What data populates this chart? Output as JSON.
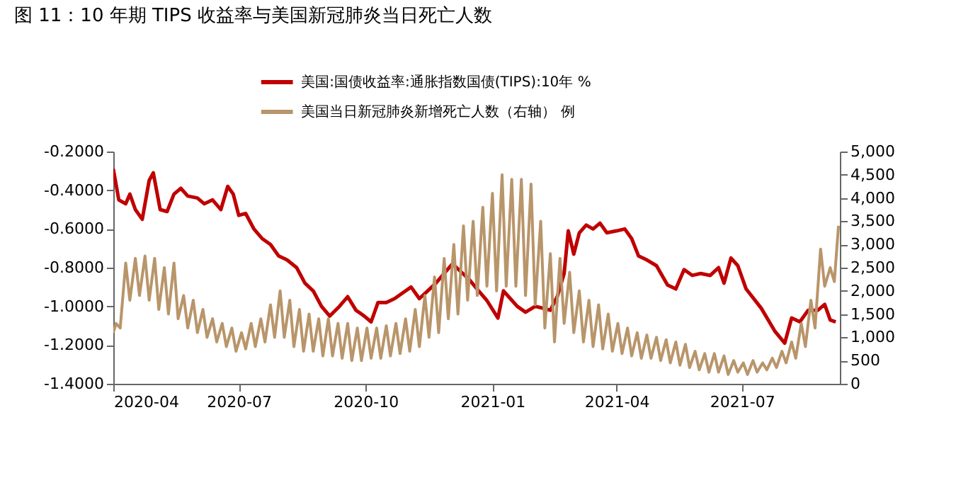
{
  "chart_data": {
    "type": "line",
    "title": "图 11：10 年期 TIPS 收益率与美国新冠肺炎当日死亡人数",
    "xlim": [
      "2020-04-01",
      "2021-09-10"
    ],
    "xticks": [
      "2020-04",
      "2020-07",
      "2020-10",
      "2021-01",
      "2021-04",
      "2021-07"
    ],
    "ylim": [
      -1.4,
      -0.2
    ],
    "yticks": [
      {
        "value": -1.4,
        "label": "-1.4000"
      },
      {
        "value": -1.2,
        "label": "-1.2000"
      },
      {
        "value": -1.0,
        "label": "-1.0000"
      },
      {
        "value": -0.8,
        "label": "-0.8000"
      },
      {
        "value": -0.6,
        "label": "-0.6000"
      },
      {
        "value": -0.4,
        "label": "-0.4000"
      },
      {
        "value": -0.2,
        "label": "-0.2000"
      }
    ],
    "y2lim": [
      0,
      5000
    ],
    "y2ticks": [
      0,
      500,
      {
        "value": 1000,
        "label": "1,000"
      },
      {
        "value": 1500,
        "label": "1,500"
      },
      {
        "value": 2000,
        "label": "2,000"
      },
      {
        "value": 2500,
        "label": "2,500"
      },
      {
        "value": 3000,
        "label": "3,000"
      },
      {
        "value": 3500,
        "label": "3,500"
      },
      {
        "value": 4000,
        "label": "4,000"
      },
      {
        "value": 4500,
        "label": "4,500"
      },
      {
        "value": 5000,
        "label": "5,000"
      }
    ],
    "grid": false,
    "legend": "top",
    "marker": "none",
    "line_style": "solid",
    "series": [
      {
        "name": "美国:国债收益率:通胀指数国债(TIPS):10年 %",
        "color": "#c00000",
        "x": [
          "2020-04-01",
          "2020-04-05",
          "2020-04-10",
          "2020-04-13",
          "2020-04-17",
          "2020-04-22",
          "2020-04-27",
          "2020-04-30",
          "2020-05-05",
          "2020-05-10",
          "2020-05-15",
          "2020-05-20",
          "2020-05-25",
          "2020-06-01",
          "2020-06-06",
          "2020-06-12",
          "2020-06-18",
          "2020-06-23",
          "2020-06-27",
          "2020-07-01",
          "2020-07-06",
          "2020-07-12",
          "2020-07-18",
          "2020-07-24",
          "2020-07-30",
          "2020-08-05",
          "2020-08-12",
          "2020-08-18",
          "2020-08-24",
          "2020-08-30",
          "2020-09-05",
          "2020-09-12",
          "2020-09-18",
          "2020-09-24",
          "2020-09-30",
          "2020-10-05",
          "2020-10-10",
          "2020-10-16",
          "2020-10-22",
          "2020-10-28",
          "2020-11-03",
          "2020-11-09",
          "2020-11-15",
          "2020-11-21",
          "2020-11-27",
          "2020-12-03",
          "2020-12-09",
          "2020-12-15",
          "2020-12-22",
          "2020-12-28",
          "2021-01-05",
          "2021-01-09",
          "2021-01-14",
          "2021-01-19",
          "2021-01-25",
          "2021-02-01",
          "2021-02-07",
          "2021-02-12",
          "2021-02-17",
          "2021-02-22",
          "2021-02-25",
          "2021-03-01",
          "2021-03-05",
          "2021-03-10",
          "2021-03-15",
          "2021-03-20",
          "2021-03-25",
          "2021-04-01",
          "2021-04-07",
          "2021-04-12",
          "2021-04-17",
          "2021-04-23",
          "2021-04-30",
          "2021-05-08",
          "2021-05-14",
          "2021-05-20",
          "2021-05-26",
          "2021-06-01",
          "2021-06-08",
          "2021-06-14",
          "2021-06-18",
          "2021-06-23",
          "2021-06-28",
          "2021-07-04",
          "2021-07-15",
          "2021-07-25",
          "2021-08-01",
          "2021-08-06",
          "2021-08-12",
          "2021-08-18",
          "2021-08-25",
          "2021-08-30",
          "2021-09-03",
          "2021-09-07"
        ],
        "values": [
          -0.29,
          -0.45,
          -0.47,
          -0.42,
          -0.5,
          -0.55,
          -0.35,
          -0.31,
          -0.5,
          -0.51,
          -0.42,
          -0.39,
          -0.43,
          -0.44,
          -0.47,
          -0.45,
          -0.5,
          -0.38,
          -0.42,
          -0.53,
          -0.52,
          -0.6,
          -0.65,
          -0.68,
          -0.74,
          -0.76,
          -0.8,
          -0.88,
          -0.92,
          -1.0,
          -1.05,
          -1.0,
          -0.95,
          -1.02,
          -1.05,
          -1.08,
          -0.98,
          -0.98,
          -0.96,
          -0.93,
          -0.9,
          -0.96,
          -0.92,
          -0.88,
          -0.83,
          -0.78,
          -0.82,
          -0.86,
          -0.92,
          -0.97,
          -1.06,
          -0.92,
          -0.96,
          -1.0,
          -1.03,
          -1.0,
          -1.01,
          -1.02,
          -0.95,
          -0.83,
          -0.61,
          -0.73,
          -0.62,
          -0.58,
          -0.6,
          -0.57,
          -0.62,
          -0.61,
          -0.6,
          -0.65,
          -0.74,
          -0.76,
          -0.79,
          -0.89,
          -0.91,
          -0.81,
          -0.84,
          -0.83,
          -0.84,
          -0.8,
          -0.88,
          -0.75,
          -0.79,
          -0.91,
          -1.01,
          -1.13,
          -1.19,
          -1.06,
          -1.08,
          -1.02,
          -1.02,
          -0.99,
          -1.07,
          -1.08
        ]
      },
      {
        "name": "美国当日新冠肺炎新增死亡人数（右轴） 例",
        "color": "#b8956a",
        "axis": "y2",
        "x": [
          "2020-04-01",
          "2020-04-03",
          "2020-04-06",
          "2020-04-10",
          "2020-04-13",
          "2020-04-17",
          "2020-04-20",
          "2020-04-24",
          "2020-04-27",
          "2020-05-01",
          "2020-05-04",
          "2020-05-08",
          "2020-05-11",
          "2020-05-15",
          "2020-05-18",
          "2020-05-22",
          "2020-05-25",
          "2020-05-29",
          "2020-06-01",
          "2020-06-05",
          "2020-06-08",
          "2020-06-12",
          "2020-06-15",
          "2020-06-19",
          "2020-06-22",
          "2020-06-26",
          "2020-06-29",
          "2020-07-03",
          "2020-07-06",
          "2020-07-10",
          "2020-07-13",
          "2020-07-17",
          "2020-07-20",
          "2020-07-24",
          "2020-07-27",
          "2020-07-31",
          "2020-08-03",
          "2020-08-07",
          "2020-08-10",
          "2020-08-14",
          "2020-08-17",
          "2020-08-21",
          "2020-08-24",
          "2020-08-28",
          "2020-08-31",
          "2020-09-04",
          "2020-09-07",
          "2020-09-11",
          "2020-09-14",
          "2020-09-18",
          "2020-09-21",
          "2020-09-25",
          "2020-09-28",
          "2020-10-02",
          "2020-10-05",
          "2020-10-09",
          "2020-10-12",
          "2020-10-16",
          "2020-10-19",
          "2020-10-23",
          "2020-10-26",
          "2020-10-30",
          "2020-11-02",
          "2020-11-06",
          "2020-11-09",
          "2020-11-13",
          "2020-11-16",
          "2020-11-20",
          "2020-11-23",
          "2020-11-27",
          "2020-11-30",
          "2020-12-04",
          "2020-12-07",
          "2020-12-11",
          "2020-12-14",
          "2020-12-18",
          "2020-12-21",
          "2020-12-25",
          "2020-12-28",
          "2021-01-01",
          "2021-01-04",
          "2021-01-08",
          "2021-01-11",
          "2021-01-15",
          "2021-01-18",
          "2021-01-22",
          "2021-01-25",
          "2021-01-29",
          "2021-02-01",
          "2021-02-05",
          "2021-02-08",
          "2021-02-12",
          "2021-02-15",
          "2021-02-19",
          "2021-02-22",
          "2021-02-26",
          "2021-03-01",
          "2021-03-05",
          "2021-03-08",
          "2021-03-12",
          "2021-03-15",
          "2021-03-19",
          "2021-03-22",
          "2021-03-26",
          "2021-03-29",
          "2021-04-02",
          "2021-04-05",
          "2021-04-09",
          "2021-04-12",
          "2021-04-16",
          "2021-04-19",
          "2021-04-23",
          "2021-04-26",
          "2021-04-30",
          "2021-05-03",
          "2021-05-07",
          "2021-05-10",
          "2021-05-14",
          "2021-05-17",
          "2021-05-21",
          "2021-05-24",
          "2021-05-28",
          "2021-05-31",
          "2021-06-04",
          "2021-06-07",
          "2021-06-11",
          "2021-06-14",
          "2021-06-18",
          "2021-06-21",
          "2021-06-25",
          "2021-06-28",
          "2021-07-02",
          "2021-07-05",
          "2021-07-09",
          "2021-07-12",
          "2021-07-16",
          "2021-07-19",
          "2021-07-23",
          "2021-07-26",
          "2021-07-30",
          "2021-08-02",
          "2021-08-06",
          "2021-08-09",
          "2021-08-13",
          "2021-08-16",
          "2021-08-20",
          "2021-08-23",
          "2021-08-27",
          "2021-08-30",
          "2021-09-03",
          "2021-09-06",
          "2021-09-09"
        ],
        "values": [
          1100,
          1300,
          1200,
          2600,
          1800,
          2700,
          1900,
          2750,
          1800,
          2700,
          1600,
          2500,
          1500,
          2600,
          1400,
          1900,
          1200,
          1800,
          1100,
          1600,
          1000,
          1400,
          900,
          1300,
          800,
          1200,
          700,
          1100,
          750,
          1300,
          800,
          1400,
          900,
          1700,
          1000,
          2000,
          1000,
          1800,
          800,
          1600,
          700,
          1500,
          700,
          1400,
          600,
          1400,
          600,
          1300,
          550,
          1300,
          500,
          1200,
          500,
          1200,
          550,
          1200,
          550,
          1250,
          600,
          1300,
          650,
          1400,
          700,
          1600,
          800,
          1900,
          1000,
          2300,
          1100,
          2700,
          1400,
          3000,
          1500,
          3400,
          1800,
          3500,
          1900,
          3800,
          2100,
          4100,
          2000,
          4500,
          2100,
          4400,
          2100,
          4400,
          1900,
          4300,
          1700,
          3500,
          1200,
          2800,
          900,
          2700,
          1300,
          2400,
          1100,
          2000,
          900,
          1800,
          800,
          1700,
          750,
          1500,
          700,
          1300,
          650,
          1200,
          600,
          1100,
          550,
          1050,
          550,
          1000,
          500,
          950,
          450,
          900,
          400,
          850,
          350,
          700,
          300,
          650,
          250,
          650,
          250,
          600,
          200,
          500,
          250,
          450,
          200,
          500,
          250,
          450,
          300,
          550,
          350,
          700,
          450,
          900,
          550,
          1300,
          800,
          1800,
          1200,
          2900,
          2100,
          2500,
          2200,
          3400
        ]
      }
    ]
  }
}
